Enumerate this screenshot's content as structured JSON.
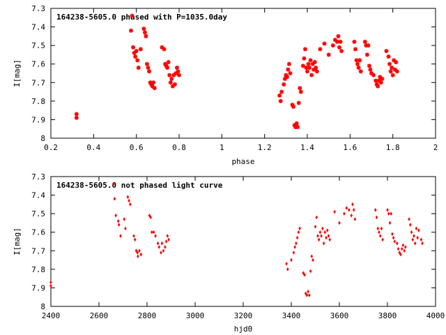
{
  "chart_data": [
    {
      "type": "scatter",
      "title": "164238-5605.0 phased with P=1035.0day",
      "xlabel": "phase",
      "ylabel": "I[mag]",
      "xlim": [
        0.2,
        2
      ],
      "ylim": [
        8,
        7.3
      ],
      "y_inverted": true,
      "xticks": [
        "0.2",
        "0.4",
        "0.6",
        "0.8",
        "1",
        "1.2",
        "1.4",
        "1.6",
        "1.8",
        "2"
      ],
      "yticks": [
        "7.3",
        "7.4",
        "7.5",
        "7.6",
        "7.7",
        "7.8",
        "7.9",
        "8"
      ],
      "grid": false,
      "marker": "star",
      "color": "#ff0000",
      "points": [
        [
          0.32,
          7.87
        ],
        [
          0.32,
          7.89
        ],
        [
          0.58,
          7.34
        ],
        [
          0.575,
          7.42
        ],
        [
          0.585,
          7.51
        ],
        [
          0.59,
          7.54
        ],
        [
          0.595,
          7.56
        ],
        [
          0.6,
          7.53
        ],
        [
          0.605,
          7.58
        ],
        [
          0.61,
          7.62
        ],
        [
          0.62,
          7.52
        ],
        [
          0.635,
          7.41
        ],
        [
          0.64,
          7.43
        ],
        [
          0.645,
          7.45
        ],
        [
          0.65,
          7.6
        ],
        [
          0.655,
          7.62
        ],
        [
          0.66,
          7.64
        ],
        [
          0.665,
          7.7
        ],
        [
          0.67,
          7.71
        ],
        [
          0.675,
          7.72
        ],
        [
          0.68,
          7.7
        ],
        [
          0.685,
          7.73
        ],
        [
          0.72,
          7.51
        ],
        [
          0.73,
          7.52
        ],
        [
          0.735,
          7.6
        ],
        [
          0.74,
          7.61
        ],
        [
          0.745,
          7.62
        ],
        [
          0.75,
          7.59
        ],
        [
          0.755,
          7.66
        ],
        [
          0.76,
          7.7
        ],
        [
          0.765,
          7.68
        ],
        [
          0.77,
          7.72
        ],
        [
          0.775,
          7.66
        ],
        [
          0.78,
          7.71
        ],
        [
          0.785,
          7.65
        ],
        [
          0.79,
          7.62
        ],
        [
          0.795,
          7.64
        ],
        [
          0.8,
          7.66
        ],
        [
          1.27,
          7.77
        ],
        [
          1.275,
          7.8
        ],
        [
          1.28,
          7.75
        ],
        [
          1.29,
          7.71
        ],
        [
          1.295,
          7.68
        ],
        [
          1.3,
          7.66
        ],
        [
          1.305,
          7.67
        ],
        [
          1.31,
          7.63
        ],
        [
          1.315,
          7.6
        ],
        [
          1.32,
          7.65
        ],
        [
          1.33,
          7.82
        ],
        [
          1.335,
          7.83
        ],
        [
          1.34,
          7.93
        ],
        [
          1.345,
          7.94
        ],
        [
          1.35,
          7.92
        ],
        [
          1.355,
          7.94
        ],
        [
          1.36,
          7.81
        ],
        [
          1.365,
          7.73
        ],
        [
          1.37,
          7.75
        ],
        [
          1.38,
          7.61
        ],
        [
          1.385,
          7.57
        ],
        [
          1.39,
          7.52
        ],
        [
          1.395,
          7.62
        ],
        [
          1.4,
          7.64
        ],
        [
          1.405,
          7.6
        ],
        [
          1.41,
          7.62
        ],
        [
          1.415,
          7.58
        ],
        [
          1.42,
          7.66
        ],
        [
          1.425,
          7.6
        ],
        [
          1.43,
          7.63
        ],
        [
          1.435,
          7.59
        ],
        [
          1.44,
          7.62
        ],
        [
          1.445,
          7.64
        ],
        [
          1.46,
          7.52
        ],
        [
          1.48,
          7.49
        ],
        [
          1.5,
          7.55
        ],
        [
          1.52,
          7.5
        ],
        [
          1.53,
          7.47
        ],
        [
          1.54,
          7.48
        ],
        [
          1.545,
          7.45
        ],
        [
          1.55,
          7.51
        ],
        [
          1.555,
          7.48
        ],
        [
          1.56,
          7.53
        ],
        [
          1.62,
          7.48
        ],
        [
          1.625,
          7.52
        ],
        [
          1.63,
          7.58
        ],
        [
          1.635,
          7.6
        ],
        [
          1.64,
          7.62
        ],
        [
          1.645,
          7.58
        ],
        [
          1.65,
          7.64
        ],
        [
          1.67,
          7.48
        ],
        [
          1.675,
          7.5
        ],
        [
          1.68,
          7.55
        ],
        [
          1.685,
          7.5
        ],
        [
          1.69,
          7.61
        ],
        [
          1.695,
          7.63
        ],
        [
          1.7,
          7.65
        ],
        [
          1.71,
          7.66
        ],
        [
          1.72,
          7.69
        ],
        [
          1.725,
          7.71
        ],
        [
          1.73,
          7.72
        ],
        [
          1.735,
          7.69
        ],
        [
          1.74,
          7.67
        ],
        [
          1.745,
          7.7
        ],
        [
          1.75,
          7.68
        ],
        [
          1.77,
          7.53
        ],
        [
          1.78,
          7.56
        ],
        [
          1.785,
          7.6
        ],
        [
          1.79,
          7.64
        ],
        [
          1.795,
          7.62
        ],
        [
          1.8,
          7.66
        ],
        [
          1.805,
          7.58
        ],
        [
          1.81,
          7.63
        ],
        [
          1.815,
          7.59
        ],
        [
          1.82,
          7.64
        ]
      ]
    },
    {
      "type": "scatter",
      "title": "164238-5605.0 not phased light curve",
      "xlabel": "hjd0",
      "ylabel": "I[mag]",
      "xlim": [
        2400,
        4000
      ],
      "ylim": [
        8,
        7.3
      ],
      "y_inverted": true,
      "xticks": [
        "2400",
        "2600",
        "2800",
        "3000",
        "3200",
        "3400",
        "3600",
        "3800",
        "4000"
      ],
      "yticks": [
        "7.3",
        "7.4",
        "7.5",
        "7.6",
        "7.7",
        "7.8",
        "7.9",
        "8"
      ],
      "grid": false,
      "marker": "diamond",
      "color": "#ff0000",
      "points": [
        [
          2400,
          7.87
        ],
        [
          2400,
          7.89
        ],
        [
          2660,
          7.34
        ],
        [
          2665,
          7.42
        ],
        [
          2670,
          7.51
        ],
        [
          2680,
          7.54
        ],
        [
          2683,
          7.56
        ],
        [
          2690,
          7.62
        ],
        [
          2705,
          7.53
        ],
        [
          2710,
          7.58
        ],
        [
          2720,
          7.41
        ],
        [
          2725,
          7.43
        ],
        [
          2730,
          7.45
        ],
        [
          2745,
          7.62
        ],
        [
          2750,
          7.64
        ],
        [
          2755,
          7.7
        ],
        [
          2760,
          7.71
        ],
        [
          2762,
          7.73
        ],
        [
          2768,
          7.7
        ],
        [
          2775,
          7.72
        ],
        [
          2810,
          7.51
        ],
        [
          2815,
          7.52
        ],
        [
          2820,
          7.6
        ],
        [
          2828,
          7.6
        ],
        [
          2835,
          7.62
        ],
        [
          2845,
          7.66
        ],
        [
          2850,
          7.68
        ],
        [
          2858,
          7.71
        ],
        [
          2862,
          7.66
        ],
        [
          2868,
          7.7
        ],
        [
          2875,
          7.68
        ],
        [
          2880,
          7.65
        ],
        [
          2885,
          7.62
        ],
        [
          2890,
          7.64
        ],
        [
          3380,
          7.77
        ],
        [
          3385,
          7.8
        ],
        [
          3400,
          7.75
        ],
        [
          3410,
          7.71
        ],
        [
          3415,
          7.68
        ],
        [
          3420,
          7.66
        ],
        [
          3425,
          7.63
        ],
        [
          3430,
          7.6
        ],
        [
          3435,
          7.58
        ],
        [
          3450,
          7.82
        ],
        [
          3455,
          7.83
        ],
        [
          3460,
          7.93
        ],
        [
          3465,
          7.94
        ],
        [
          3470,
          7.92
        ],
        [
          3475,
          7.94
        ],
        [
          3480,
          7.81
        ],
        [
          3485,
          7.73
        ],
        [
          3490,
          7.75
        ],
        [
          3500,
          7.57
        ],
        [
          3505,
          7.52
        ],
        [
          3510,
          7.62
        ],
        [
          3515,
          7.64
        ],
        [
          3520,
          7.6
        ],
        [
          3525,
          7.62
        ],
        [
          3530,
          7.58
        ],
        [
          3535,
          7.66
        ],
        [
          3540,
          7.6
        ],
        [
          3545,
          7.63
        ],
        [
          3550,
          7.59
        ],
        [
          3555,
          7.62
        ],
        [
          3560,
          7.64
        ],
        [
          3580,
          7.49
        ],
        [
          3600,
          7.55
        ],
        [
          3620,
          7.5
        ],
        [
          3630,
          7.47
        ],
        [
          3640,
          7.48
        ],
        [
          3650,
          7.51
        ],
        [
          3655,
          7.45
        ],
        [
          3660,
          7.48
        ],
        [
          3665,
          7.53
        ],
        [
          3750,
          7.48
        ],
        [
          3755,
          7.52
        ],
        [
          3760,
          7.58
        ],
        [
          3765,
          7.6
        ],
        [
          3770,
          7.62
        ],
        [
          3775,
          7.58
        ],
        [
          3780,
          7.64
        ],
        [
          3800,
          7.48
        ],
        [
          3805,
          7.5
        ],
        [
          3810,
          7.55
        ],
        [
          3815,
          7.5
        ],
        [
          3820,
          7.61
        ],
        [
          3825,
          7.63
        ],
        [
          3830,
          7.65
        ],
        [
          3840,
          7.66
        ],
        [
          3845,
          7.69
        ],
        [
          3850,
          7.71
        ],
        [
          3855,
          7.72
        ],
        [
          3860,
          7.69
        ],
        [
          3865,
          7.67
        ],
        [
          3870,
          7.7
        ],
        [
          3875,
          7.68
        ],
        [
          3890,
          7.53
        ],
        [
          3895,
          7.56
        ],
        [
          3900,
          7.6
        ],
        [
          3905,
          7.64
        ],
        [
          3910,
          7.62
        ],
        [
          3915,
          7.66
        ],
        [
          3920,
          7.58
        ],
        [
          3925,
          7.63
        ],
        [
          3930,
          7.59
        ],
        [
          3940,
          7.64
        ],
        [
          3945,
          7.66
        ]
      ]
    }
  ]
}
